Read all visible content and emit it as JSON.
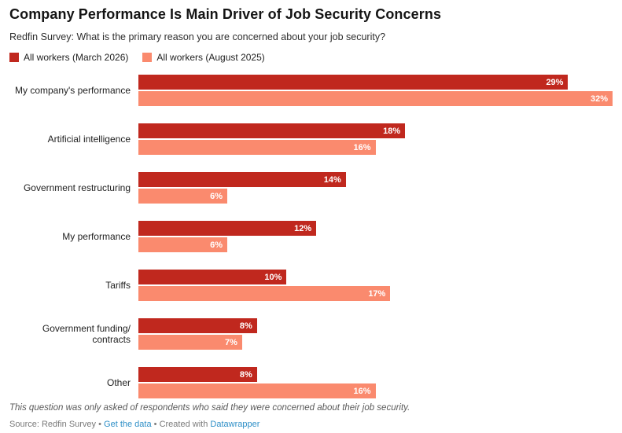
{
  "header": {
    "title": "Company Performance Is Main Driver of Job Security Concerns",
    "subtitle": "Redfin Survey: What is the primary reason you are concerned about your job security?"
  },
  "colors": {
    "series1": "#c0281e",
    "series2": "#fa8a6e"
  },
  "chart_data": {
    "type": "bar",
    "orientation": "horizontal",
    "title": "Company Performance Is Main Driver of Job Security Concerns",
    "subtitle": "Redfin Survey: What is the primary reason you are concerned about your job security?",
    "categories": [
      "My company's performance",
      "Artificial intelligence",
      "Government restructuring",
      "My performance",
      "Tariffs",
      "Government funding/ contracts",
      "Other"
    ],
    "series": [
      {
        "name": "All workers (March 2026)",
        "color": "#c0281e",
        "values": [
          29,
          18,
          14,
          12,
          10,
          8,
          8
        ]
      },
      {
        "name": "All workers (August 2025)",
        "color": "#fa8a6e",
        "values": [
          32,
          16,
          6,
          6,
          17,
          7,
          16
        ]
      }
    ],
    "value_suffix": "%",
    "xlim": [
      0,
      32
    ],
    "grid": false,
    "legend_position": "top",
    "labels_inside_bars": true
  },
  "footer": {
    "note": "This question was only asked of respondents who said they were concerned about their job security.",
    "source_text": "Source: Redfin Survey",
    "separator": "•",
    "get_data_label": "Get the data",
    "created_with_label": "Created with",
    "datawrapper_label": "Datawrapper"
  }
}
